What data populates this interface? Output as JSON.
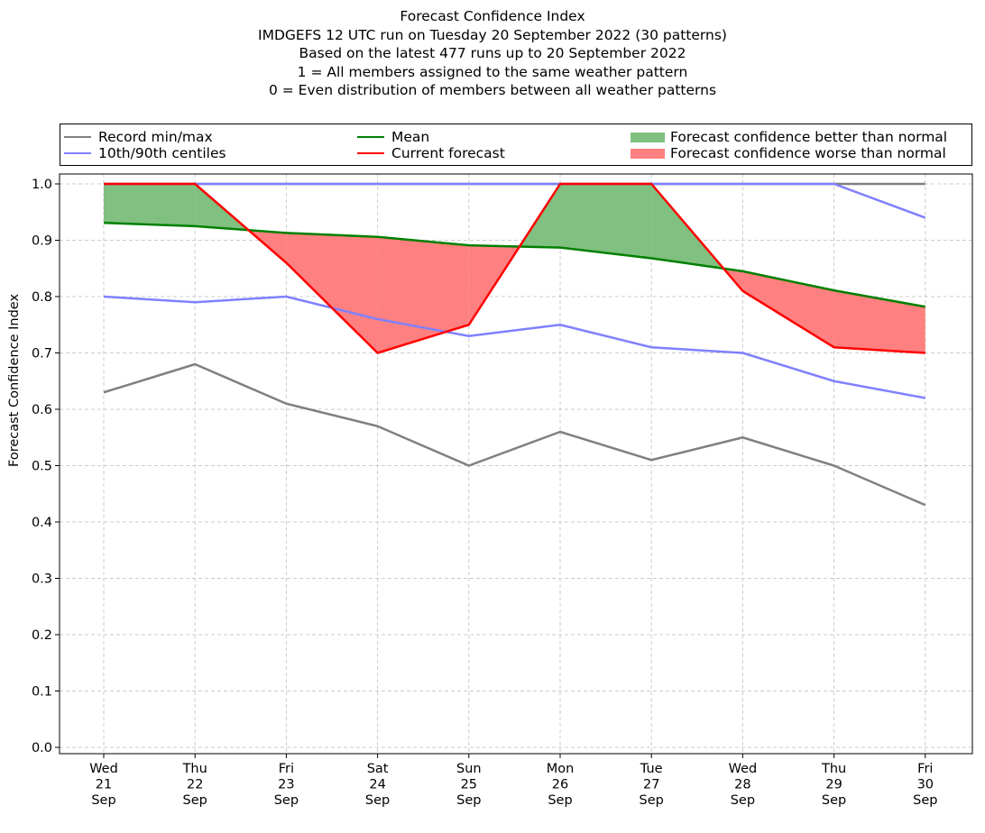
{
  "title_lines": [
    "Forecast Confidence Index",
    "IMDGEFS 12 UTC run on Tuesday 20 September 2022 (30 patterns)",
    "Based on the latest 477 runs up to 20 September 2022",
    "1 = All members assigned to the same weather pattern",
    "0 = Even distribution of members between all weather patterns"
  ],
  "legend": {
    "record": "Record min/max",
    "centiles": "10th/90th centiles",
    "mean": "Mean",
    "current": "Current forecast",
    "better": "Forecast confidence better than normal",
    "worse": "Forecast confidence worse than normal"
  },
  "colors": {
    "record": "#808080",
    "centiles": "#8080ff",
    "mean": "#008000",
    "current": "#ff0000",
    "better": "#80c080",
    "worse": "#ff8080"
  },
  "chart_data": {
    "type": "line",
    "ylabel": "Forecast Confidence Index",
    "ylim": [
      0.0,
      1.0
    ],
    "yticks": [
      "0.0",
      "0.1",
      "0.2",
      "0.3",
      "0.4",
      "0.5",
      "0.6",
      "0.7",
      "0.8",
      "0.9",
      "1.0"
    ],
    "grid": true,
    "legend_position": "top",
    "categories": [
      [
        "Wed",
        "21",
        "Sep"
      ],
      [
        "Thu",
        "22",
        "Sep"
      ],
      [
        "Fri",
        "23",
        "Sep"
      ],
      [
        "Sat",
        "24",
        "Sep"
      ],
      [
        "Sun",
        "25",
        "Sep"
      ],
      [
        "Mon",
        "26",
        "Sep"
      ],
      [
        "Tue",
        "27",
        "Sep"
      ],
      [
        "Wed",
        "28",
        "Sep"
      ],
      [
        "Thu",
        "29",
        "Sep"
      ],
      [
        "Fri",
        "30",
        "Sep"
      ]
    ],
    "series": [
      {
        "name": "Record min/max",
        "role": "record_max",
        "values": [
          1.0,
          1.0,
          1.0,
          1.0,
          1.0,
          1.0,
          1.0,
          1.0,
          1.0,
          1.0
        ]
      },
      {
        "name": "Record min/max",
        "role": "record_min",
        "values": [
          0.63,
          0.68,
          0.61,
          0.57,
          0.5,
          0.56,
          0.51,
          0.55,
          0.5,
          0.43
        ]
      },
      {
        "name": "10th/90th centiles",
        "role": "p90",
        "values": [
          1.0,
          1.0,
          1.0,
          1.0,
          1.0,
          1.0,
          1.0,
          1.0,
          1.0,
          0.94
        ]
      },
      {
        "name": "10th/90th centiles",
        "role": "p10",
        "values": [
          0.8,
          0.79,
          0.8,
          0.76,
          0.73,
          0.75,
          0.71,
          0.7,
          0.65,
          0.62
        ]
      },
      {
        "name": "Mean",
        "role": "mean",
        "values": [
          0.931,
          0.925,
          0.913,
          0.906,
          0.891,
          0.887,
          0.868,
          0.845,
          0.811,
          0.782
        ]
      },
      {
        "name": "Current forecast",
        "role": "current",
        "values": [
          1.0,
          1.0,
          0.86,
          0.7,
          0.75,
          1.0,
          1.0,
          0.81,
          0.71,
          0.7
        ]
      }
    ]
  }
}
